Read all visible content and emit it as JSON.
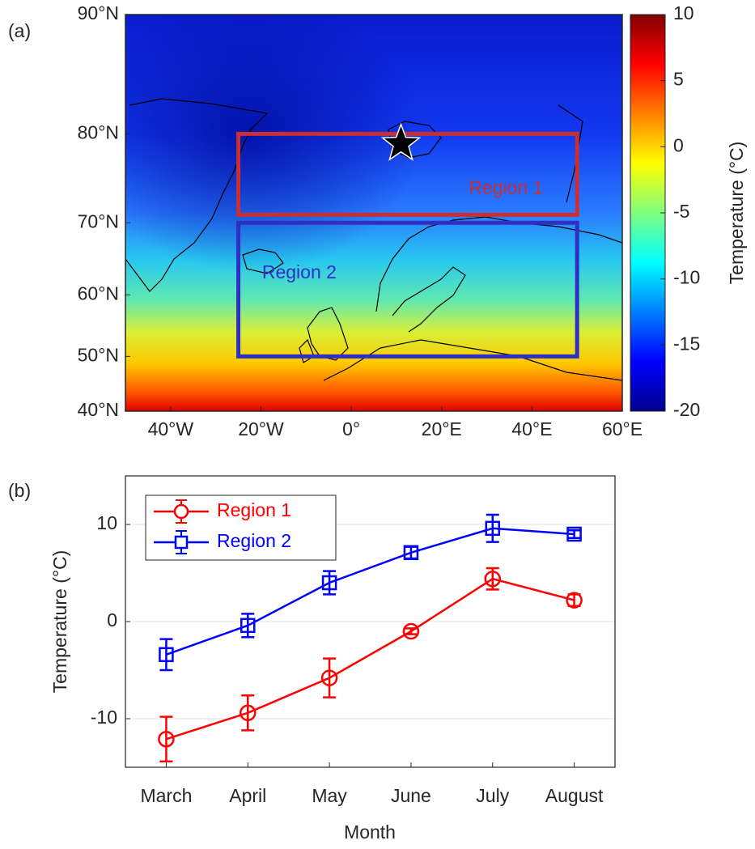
{
  "chart_data": [
    {
      "type": "map",
      "panel_label": "(a)",
      "xlim": [
        -50,
        60
      ],
      "ylim": [
        40,
        90
      ],
      "xticks": [
        {
          "value": -40,
          "label": "40°W"
        },
        {
          "value": -20,
          "label": "20°W"
        },
        {
          "value": 0,
          "label": "0°"
        },
        {
          "value": 20,
          "label": "20°E"
        },
        {
          "value": 40,
          "label": "40°E"
        },
        {
          "value": 60,
          "label": "60°E"
        }
      ],
      "yticks": [
        {
          "value": 90,
          "label": "90°N"
        },
        {
          "value": 80,
          "label": "80°N"
        },
        {
          "value": 70,
          "label": "70°N"
        },
        {
          "value": 60,
          "label": "60°N"
        },
        {
          "value": 50,
          "label": "50°N"
        },
        {
          "value": 40,
          "label": "40°N"
        }
      ],
      "regions": [
        {
          "name": "Region 1",
          "color": "#c62f36",
          "lon": [
            -25,
            50
          ],
          "lat": [
            71,
            80
          ]
        },
        {
          "name": "Region 2",
          "color": "#2f2fc6",
          "lon": [
            -25,
            50
          ],
          "lat": [
            50,
            70
          ]
        }
      ],
      "marker": {
        "lon": 11,
        "lat": 79
      },
      "colorbar": {
        "label": "Temperature (°C)",
        "lim": [
          -20,
          10
        ],
        "ticks": [
          -20,
          -15,
          -10,
          -5,
          0,
          5,
          10
        ]
      }
    },
    {
      "type": "line",
      "panel_label": "(b)",
      "xlabel": "Month",
      "ylabel": "Temperature (°C)",
      "categories": [
        "March",
        "April",
        "May",
        "June",
        "July",
        "August"
      ],
      "ylim": [
        -15,
        15
      ],
      "yticks": [
        -10,
        0,
        10
      ],
      "grid": true,
      "legend": "upper left",
      "series": [
        {
          "name": "Region 1",
          "color": "#ff0000",
          "marker": "circle",
          "values": [
            -12.1,
            -9.4,
            -5.8,
            -1.0,
            4.4,
            2.2
          ],
          "errors": [
            2.3,
            1.8,
            2.0,
            0.3,
            1.1,
            0.6
          ]
        },
        {
          "name": "Region 2",
          "color": "#0000ff",
          "marker": "square",
          "values": [
            -3.4,
            -0.4,
            4.0,
            7.1,
            9.6,
            9.0
          ],
          "errors": [
            1.6,
            1.2,
            1.2,
            0.6,
            1.4,
            0.4
          ]
        }
      ]
    }
  ]
}
